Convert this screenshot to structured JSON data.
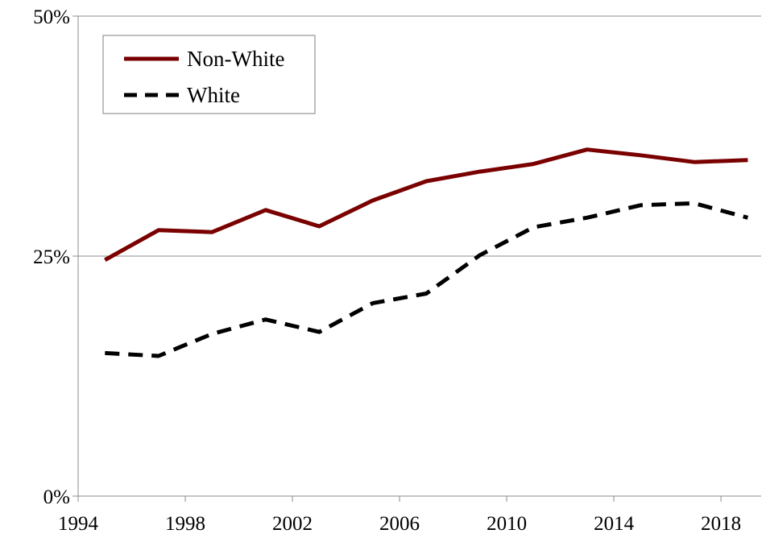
{
  "chart_data": {
    "type": "line",
    "title": "",
    "xlabel": "",
    "ylabel": "",
    "ylim": [
      0,
      50
    ],
    "y_ticks": [
      0,
      25,
      50
    ],
    "y_tick_labels": [
      "0%",
      "25%",
      "50%"
    ],
    "x_ticks": [
      1994,
      1998,
      2002,
      2006,
      2010,
      2014,
      2018
    ],
    "x_tick_labels": [
      "1994",
      "1998",
      "2002",
      "2006",
      "2010",
      "2014",
      "2018"
    ],
    "xlim": [
      1994,
      2019.5
    ],
    "grid": "horizontal at 25%",
    "legend_position": "top-left",
    "x": [
      1995,
      1997,
      1999,
      2001,
      2003,
      2005,
      2007,
      2009,
      2011,
      2013,
      2015,
      2017,
      2019
    ],
    "series": [
      {
        "name": "Non-White",
        "color": "#7a0000",
        "style": "solid",
        "values": [
          24.6,
          27.7,
          27.5,
          29.8,
          28.1,
          30.8,
          32.8,
          33.8,
          34.6,
          36.1,
          35.5,
          34.8,
          35.0
        ]
      },
      {
        "name": "White",
        "color": "#000000",
        "style": "dashed",
        "values": [
          14.9,
          14.6,
          16.9,
          18.4,
          17.1,
          20.1,
          21.1,
          25.1,
          28.0,
          29.0,
          30.3,
          30.5,
          29.0
        ]
      }
    ]
  }
}
